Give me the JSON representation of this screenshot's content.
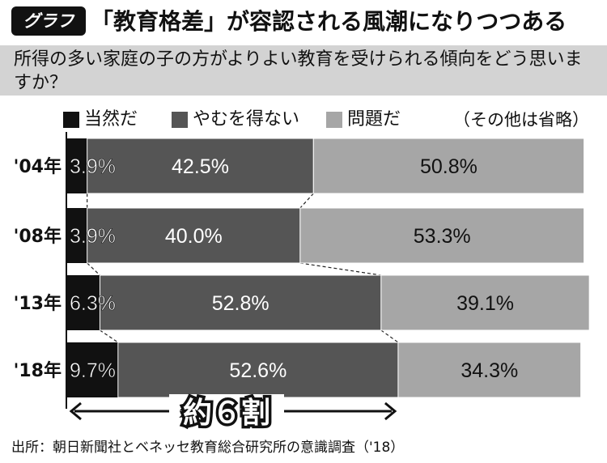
{
  "header": {
    "badge": "グラフ",
    "title": "「教育格差」が容認される風潮になりつつある"
  },
  "question": "所得の多い家庭の子の方がよりよい教育を受けられる傾向をどう思いますか？",
  "legend_note": "（その他は省略）",
  "annotation": "約６割",
  "source": "出所：朝日新聞社とベネッセ教育総合研究所の意識調査（'18）",
  "colors": {
    "series1": "#111111",
    "series2": "#555555",
    "series3": "#a6a6a6"
  },
  "chart_data": {
    "type": "bar",
    "stacked": true,
    "orientation": "horizontal",
    "categories": [
      "'04年",
      "'08年",
      "'13年",
      "'18年"
    ],
    "series": [
      {
        "name": "当然だ",
        "values": [
          3.9,
          3.9,
          6.3,
          9.7
        ],
        "labels": [
          "3.9%",
          "3.9%",
          "6.3%",
          "9.7%"
        ]
      },
      {
        "name": "やむを得ない",
        "values": [
          42.5,
          40.0,
          52.8,
          52.6
        ],
        "labels": [
          "42.5%",
          "40.0%",
          "52.8%",
          "52.6%"
        ]
      },
      {
        "name": "問題だ",
        "values": [
          50.8,
          53.3,
          39.1,
          34.3
        ],
        "labels": [
          "50.8%",
          "53.3%",
          "39.1%",
          "34.3%"
        ]
      }
    ],
    "xlim": [
      0,
      100
    ]
  }
}
